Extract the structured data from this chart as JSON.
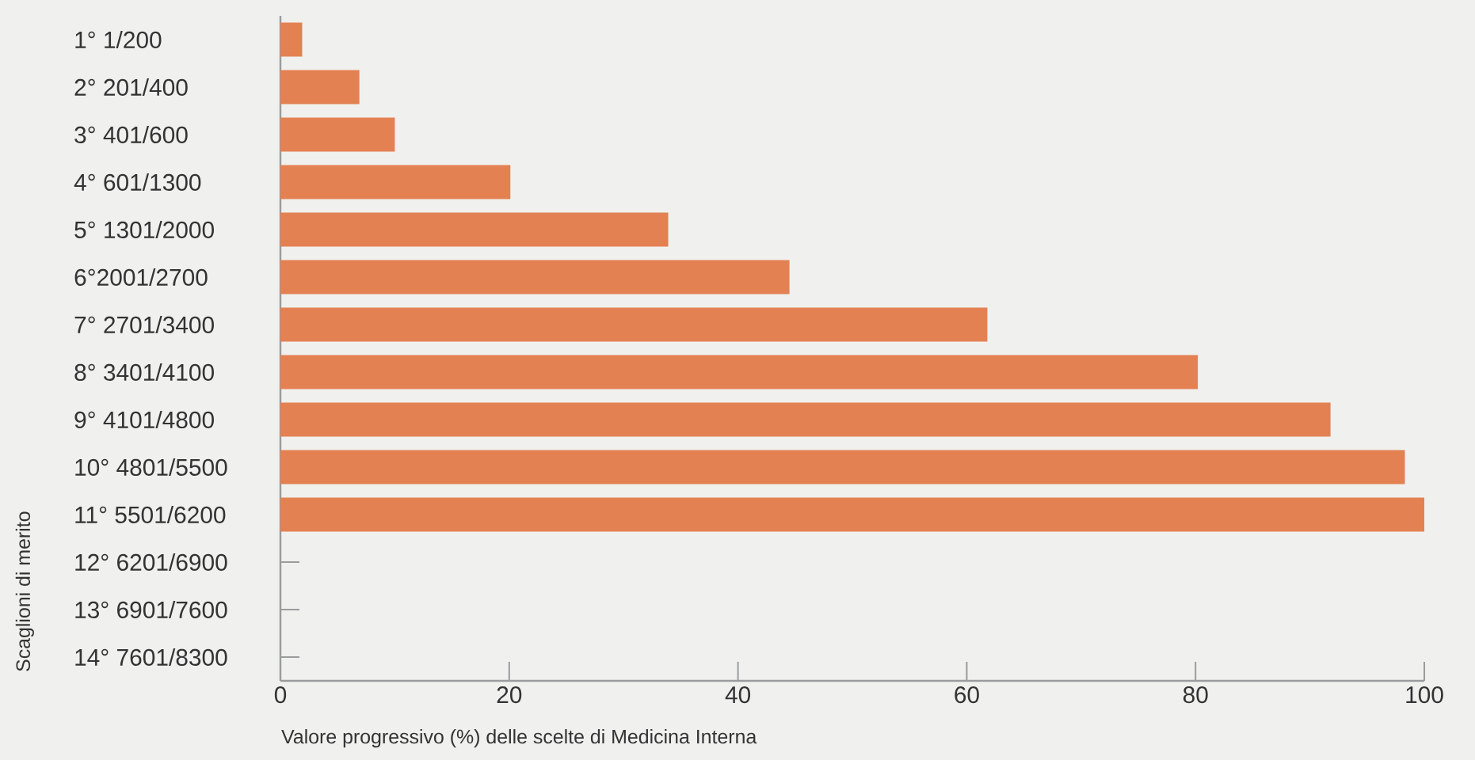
{
  "chart_data": {
    "type": "bar",
    "orientation": "horizontal",
    "categories": [
      "1° 1/200",
      "2° 201/400",
      "3° 401/600",
      "4° 601/1300",
      "5° 1301/2000",
      "6°2001/2700",
      "7° 2701/3400",
      "8° 3401/4100",
      "9° 4101/4800",
      "10° 4801/5500",
      "11° 5501/6200",
      "12° 6201/6900",
      "13° 6901/7600",
      "14° 7601/8300"
    ],
    "values": [
      1.9,
      6.9,
      10,
      20.1,
      33.9,
      44.5,
      61.8,
      80.2,
      91.8,
      98.3,
      100,
      0,
      0,
      0
    ],
    "color": "#e38153",
    "xlabel": "Valore progressivo (%) delle scelte di Medicina Interna",
    "ylabel": "Scaglioni di merito",
    "xlim": [
      0,
      100
    ],
    "xticks": [
      0,
      20,
      40,
      60,
      80,
      100
    ]
  }
}
